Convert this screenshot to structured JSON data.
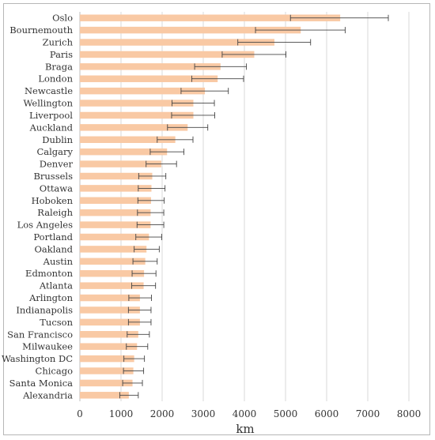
{
  "chart_data": {
    "type": "bar",
    "orientation": "horizontal",
    "title": "",
    "xlabel": "km",
    "ylabel": "",
    "xlim": [
      0,
      8000
    ],
    "xticks": [
      "0",
      "1000",
      "2000",
      "3000",
      "4000",
      "5000",
      "6000",
      "7000",
      "8000"
    ],
    "gridlines": true,
    "legend": "none",
    "bar_color": "#f9c9a4",
    "error_bar_color": "#444444",
    "categories": [
      "Oslo",
      "Bournemouth",
      "Zurich",
      "Paris",
      "Braga",
      "London",
      "Newcastle",
      "Wellington",
      "Liverpool",
      "Auckland",
      "Dublin",
      "Calgary",
      "Denver",
      "Brussels",
      "Ottawa",
      "Hoboken",
      "Raleigh",
      "Los Angeles",
      "Portland",
      "Oakland",
      "Austin",
      "Edmonton",
      "Atlanta",
      "Arlington",
      "Indianapolis",
      "Tucson",
      "San Francisco",
      "Milwaukee",
      "Washington DC",
      "Chicago",
      "Santa Monica",
      "Alexandria"
    ],
    "values": [
      6330,
      5370,
      4730,
      4240,
      3420,
      3350,
      3040,
      2760,
      2760,
      2620,
      2320,
      2120,
      1980,
      1760,
      1740,
      1730,
      1720,
      1720,
      1680,
      1620,
      1590,
      1560,
      1550,
      1460,
      1460,
      1460,
      1420,
      1390,
      1320,
      1300,
      1280,
      1190
    ],
    "error_low": [
      5120,
      4270,
      3840,
      3460,
      2790,
      2720,
      2460,
      2240,
      2230,
      2130,
      1880,
      1710,
      1610,
      1430,
      1420,
      1410,
      1400,
      1390,
      1360,
      1320,
      1290,
      1270,
      1260,
      1190,
      1180,
      1180,
      1150,
      1130,
      1070,
      1060,
      1040,
      970
    ],
    "error_high": [
      7500,
      6450,
      5610,
      5010,
      4050,
      3980,
      3610,
      3270,
      3280,
      3110,
      2750,
      2530,
      2350,
      2090,
      2070,
      2050,
      2040,
      2040,
      1990,
      1930,
      1880,
      1850,
      1840,
      1740,
      1730,
      1730,
      1690,
      1650,
      1570,
      1550,
      1520,
      1420
    ]
  }
}
